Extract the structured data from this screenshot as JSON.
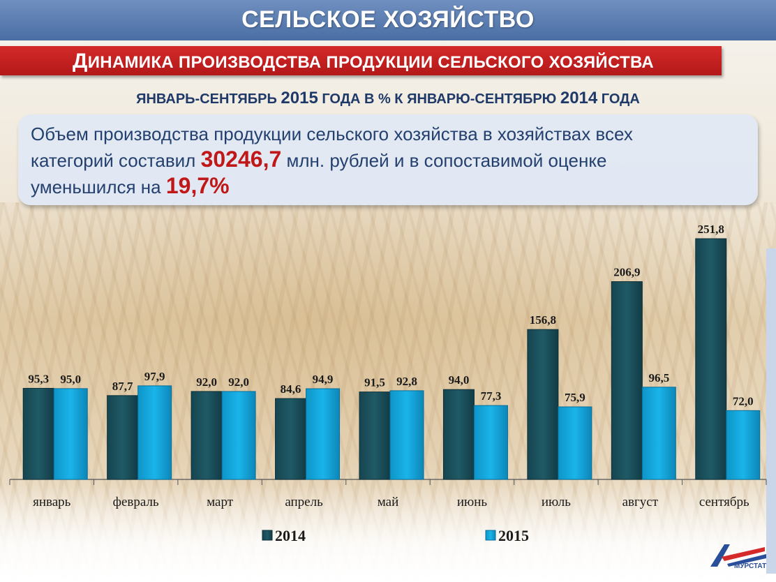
{
  "header": {
    "title": "СЕЛЬСКОЕ ХОЗЯЙСТВО"
  },
  "section": {
    "title": "Динамика производства продукции сельского хозяйства"
  },
  "period_label": "январь-сентябрь 2015 года в % к январю-сентябрю 2014 года",
  "info": {
    "line1": "Объем производства продукции сельского хозяйства в хозяйствах всех",
    "part1": "категорий составил ",
    "volume": "30246,7",
    "part2": " млн. рублей и в сопоставимой оценке",
    "part3": "уменьшился на ",
    "decrease": "19,7%"
  },
  "logo": {
    "text": "МУРСТАТ"
  },
  "colors": {
    "series_2014": "#1f5a66",
    "series_2015": "#1ab4ea",
    "header": "#4a6ea4",
    "accent": "#c01818"
  },
  "chart_data": {
    "type": "bar",
    "categories": [
      "январь",
      "февраль",
      "март",
      "апрель",
      "май",
      "июнь",
      "июль",
      "август",
      "сентябрь"
    ],
    "series": [
      {
        "name": "2014",
        "values": [
          95.3,
          87.7,
          92.0,
          84.6,
          91.5,
          94.0,
          156.8,
          206.9,
          251.8
        ],
        "labels": [
          "95,3",
          "87,7",
          "92,0",
          "84,6",
          "91,5",
          "94,0",
          "156,8",
          "206,9",
          "251,8"
        ]
      },
      {
        "name": "2015",
        "values": [
          95.0,
          97.9,
          92.0,
          94.9,
          92.8,
          77.3,
          75.9,
          96.5,
          72.0
        ],
        "labels": [
          "95,0",
          "97,9",
          "92,0",
          "94,9",
          "92,8",
          "77,3",
          "75,9",
          "96,5",
          "72,0"
        ]
      }
    ],
    "legend_position": "bottom",
    "grid": false
  }
}
